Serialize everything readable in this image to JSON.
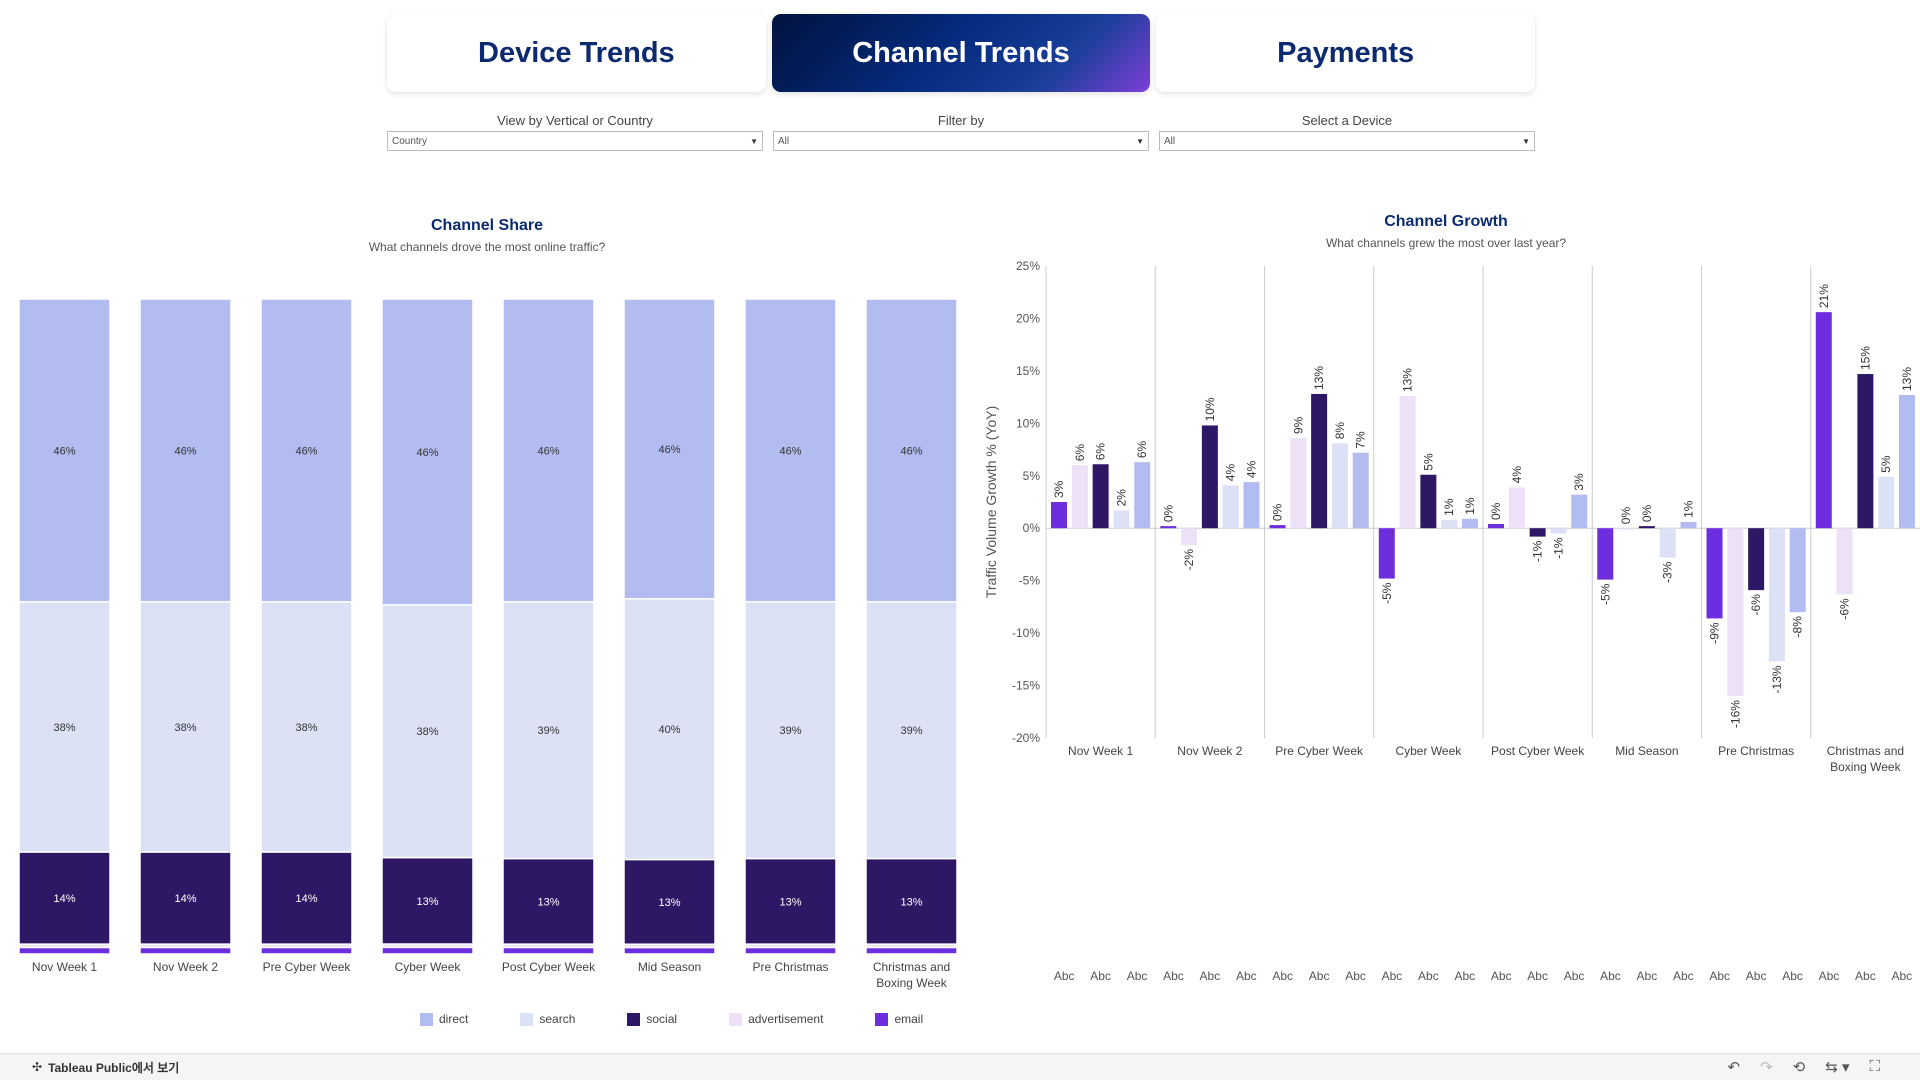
{
  "tabs": [
    {
      "label": "Device Trends",
      "active": false
    },
    {
      "label": "Channel Trends",
      "active": true
    },
    {
      "label": "Payments",
      "active": false
    }
  ],
  "filters": [
    {
      "label": "View by Vertical or Country",
      "value": "Country"
    },
    {
      "label": "Filter by",
      "value": "All"
    },
    {
      "label": "Select a Device",
      "value": "All"
    }
  ],
  "colors": {
    "direct": "#b3bcf0",
    "search": "#dde1f6",
    "social": "#2e1865",
    "advertisement": "#ece1f6",
    "email": "#6d2ee0"
  },
  "legend": [
    {
      "key": "direct",
      "label": "direct"
    },
    {
      "key": "search",
      "label": "search"
    },
    {
      "key": "social",
      "label": "social"
    },
    {
      "key": "advertisement",
      "label": "advertisement"
    },
    {
      "key": "email",
      "label": "email"
    }
  ],
  "chart_data": [
    {
      "type": "bar",
      "stacked": true,
      "title": "Channel Share",
      "subtitle": "What channels drove the most online traffic?",
      "categories": [
        "Nov Week 1",
        "Nov Week 2",
        "Pre Cyber Week",
        "Cyber Week",
        "Post Cyber Week",
        "Mid Season",
        "Pre Christmas",
        "Christmas and Boxing Week"
      ],
      "series": [
        {
          "name": "email",
          "values": [
            1,
            1,
            1,
            1,
            1,
            1,
            1,
            1
          ]
        },
        {
          "name": "advertisement",
          "values": [
            0.5,
            0.5,
            0.5,
            0.5,
            0.5,
            0.5,
            0.5,
            0.5
          ]
        },
        {
          "name": "social",
          "values": [
            14,
            14,
            14,
            13,
            13,
            13,
            13,
            13
          ]
        },
        {
          "name": "search",
          "values": [
            38,
            38,
            38,
            38,
            39,
            40,
            39,
            39
          ]
        },
        {
          "name": "direct",
          "values": [
            46,
            46,
            46,
            46,
            46,
            46,
            46,
            46
          ]
        }
      ],
      "value_labels": [
        {
          "social": "14%",
          "search": "38%",
          "direct": "46%"
        },
        {
          "social": "14%",
          "search": "38%",
          "direct": "46%"
        },
        {
          "social": "14%",
          "search": "38%",
          "direct": "46%"
        },
        {
          "social": "13%",
          "search": "38%",
          "direct": "46%"
        },
        {
          "social": "13%",
          "search": "39%",
          "direct": "46%"
        },
        {
          "social": "13%",
          "search": "40%",
          "direct": "46%"
        },
        {
          "social": "13%",
          "search": "39%",
          "direct": "46%"
        },
        {
          "social": "13%",
          "search": "39%",
          "direct": "46%"
        }
      ]
    },
    {
      "type": "bar",
      "title": "Channel Growth",
      "subtitle": "What channels grew the most over last year?",
      "ylabel": "Traffic Volume Growth % (YoY)",
      "ylim": [
        -20,
        25
      ],
      "yticks": [
        "25%",
        "20%",
        "15%",
        "10%",
        "5%",
        "0%",
        "-5%",
        "-10%",
        "-15%",
        "-20%"
      ],
      "ytick_values": [
        25,
        20,
        15,
        10,
        5,
        0,
        -5,
        -10,
        -15,
        -20
      ],
      "categories": [
        "Nov Week 1",
        "Nov Week 2",
        "Pre Cyber Week",
        "Cyber Week",
        "Post Cyber Week",
        "Mid Season",
        "Pre Christmas",
        "Christmas and Boxing Week"
      ],
      "category_display": [
        [
          "Nov Week 1"
        ],
        [
          "Nov Week 2"
        ],
        [
          "Pre Cyber Week"
        ],
        [
          "Cyber Week"
        ],
        [
          "Post Cyber Week"
        ],
        [
          "Mid Season"
        ],
        [
          "Pre Christmas"
        ],
        [
          "Christmas and",
          "Boxing Week"
        ]
      ],
      "series_order": [
        "email",
        "advertisement",
        "social",
        "search",
        "direct"
      ],
      "values": [
        [
          2.5,
          6.0,
          6.1,
          1.7,
          6.3
        ],
        [
          0.2,
          -1.6,
          9.8,
          4.1,
          4.4
        ],
        [
          0.3,
          8.6,
          12.8,
          8.1,
          7.2
        ],
        [
          -4.8,
          12.6,
          5.1,
          0.8,
          0.9
        ],
        [
          0.4,
          3.9,
          -0.8,
          -0.5,
          3.2
        ],
        [
          -4.9,
          0.0,
          0.2,
          -2.8,
          0.6
        ],
        [
          -8.6,
          -16.0,
          -5.9,
          -12.7,
          -8.0
        ],
        [
          20.6,
          -6.3,
          14.7,
          4.9,
          12.7
        ]
      ],
      "labels": [
        [
          "3%",
          "6%",
          "6%",
          "2%",
          "6%"
        ],
        [
          "0%",
          "-2%",
          "10%",
          "4%",
          "4%"
        ],
        [
          "0%",
          "9%",
          "13%",
          "8%",
          "7%"
        ],
        [
          "-5%",
          "13%",
          "5%",
          "1%",
          "1%"
        ],
        [
          "0%",
          "4%",
          "-1%",
          "-1%",
          "3%"
        ],
        [
          "-5%",
          "0%",
          "0%",
          "-3%",
          "1%"
        ],
        [
          "-9%",
          "-16%",
          "-6%",
          "-13%",
          "-8%"
        ],
        [
          "21%",
          "-6%",
          "15%",
          "5%",
          "13%"
        ]
      ],
      "placeholder_text": "Abc"
    }
  ],
  "footer": {
    "tableau_link": "Tableau Public에서 보기"
  }
}
